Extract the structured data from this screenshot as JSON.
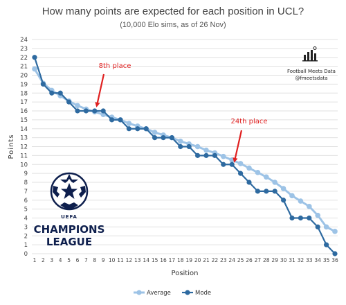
{
  "header": {
    "title": "How many points are expected for each position in UCL?",
    "subtitle": "(10,000 Elo sims, as of 26 Nov)"
  },
  "credit": {
    "line1": "Football Meets Data",
    "line2": "@fmeetsdata"
  },
  "logo": {
    "top": "UEFA",
    "line1": "CHAMPIONS",
    "line2": "LEAGUE"
  },
  "colors": {
    "average": "#9dc3e6",
    "mode": "#2e6aa0",
    "annotation": "#e02020",
    "grid": "#e0e0e0"
  },
  "chart_data": {
    "type": "line",
    "xlabel": "Position",
    "ylabel": "Points",
    "x": [
      1,
      2,
      3,
      4,
      5,
      6,
      7,
      8,
      9,
      10,
      11,
      12,
      13,
      14,
      15,
      16,
      17,
      18,
      19,
      20,
      21,
      22,
      23,
      24,
      25,
      26,
      27,
      28,
      29,
      30,
      31,
      32,
      33,
      34,
      35,
      36
    ],
    "xlim": [
      1,
      36
    ],
    "ylim": [
      0,
      24
    ],
    "yticks": [
      0,
      1,
      2,
      3,
      4,
      5,
      6,
      7,
      8,
      9,
      10,
      11,
      12,
      13,
      14,
      15,
      16,
      17,
      18,
      19,
      20,
      21,
      22,
      23,
      24
    ],
    "grid": "horizontal",
    "legend_position": "bottom",
    "series": [
      {
        "name": "Average",
        "values": [
          20.7,
          19.1,
          18.3,
          17.7,
          17.1,
          16.6,
          16.2,
          15.9,
          15.6,
          15.3,
          15.0,
          14.6,
          14.3,
          14.0,
          13.6,
          13.3,
          13.0,
          12.6,
          12.3,
          12.0,
          11.6,
          11.3,
          10.9,
          10.5,
          10.1,
          9.6,
          9.1,
          8.6,
          8.0,
          7.3,
          6.5,
          5.9,
          5.3,
          4.3,
          3.0,
          2.5
        ]
      },
      {
        "name": "Mode",
        "values": [
          22,
          19,
          18,
          18,
          17,
          16,
          16,
          16,
          16,
          15,
          15,
          14,
          14,
          14,
          13,
          13,
          13,
          12,
          12,
          11,
          11,
          11,
          10,
          10,
          9,
          8,
          7,
          7,
          7,
          6,
          4,
          4,
          4,
          3,
          1,
          0
        ]
      }
    ],
    "annotations": [
      {
        "text": "8th place",
        "x": 8,
        "y": 16
      },
      {
        "text": "24th place",
        "x": 24,
        "y": 10
      }
    ]
  }
}
